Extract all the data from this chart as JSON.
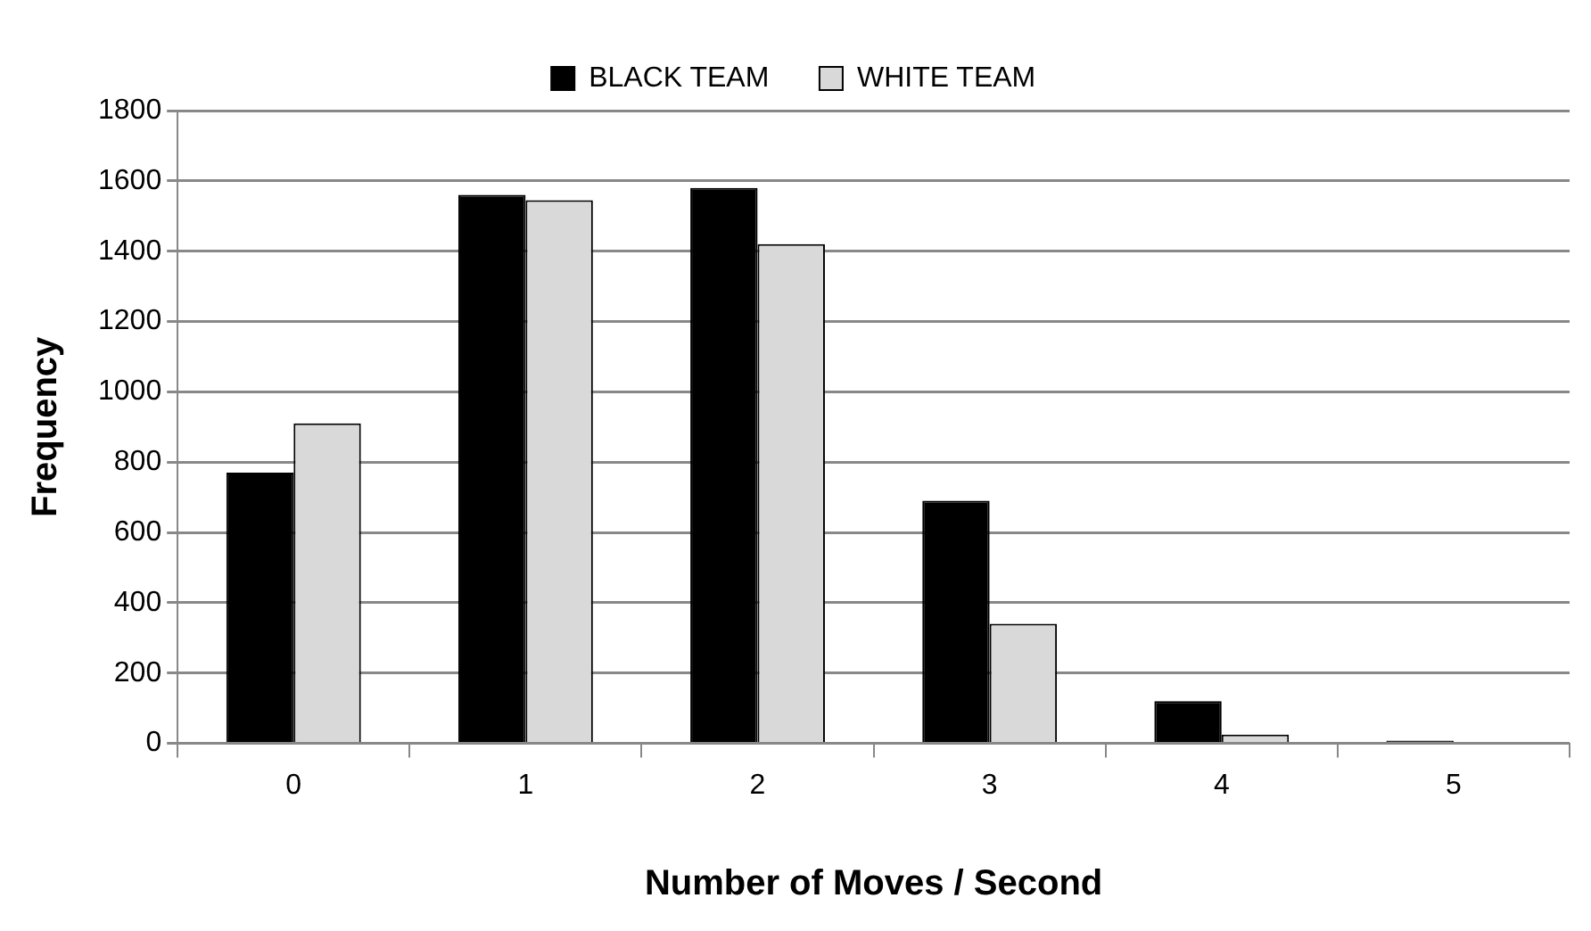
{
  "chart_data": {
    "type": "bar",
    "xlabel": "Number of Moves / Second",
    "ylabel": "Frequency",
    "categories": [
      "0",
      "1",
      "2",
      "3",
      "4",
      "5"
    ],
    "series": [
      {
        "name": "BLACK TEAM",
        "color": "#000000",
        "values": [
          770,
          1560,
          1580,
          690,
          120,
          8
        ]
      },
      {
        "name": "WHITE TEAM",
        "color": "#d9d9d9",
        "values": [
          910,
          1545,
          1420,
          340,
          25,
          0
        ]
      }
    ],
    "ylim": [
      0,
      1800
    ],
    "yticks": [
      0,
      200,
      400,
      600,
      800,
      1000,
      1200,
      1400,
      1600,
      1800
    ],
    "grid": "y",
    "legend": "top"
  }
}
